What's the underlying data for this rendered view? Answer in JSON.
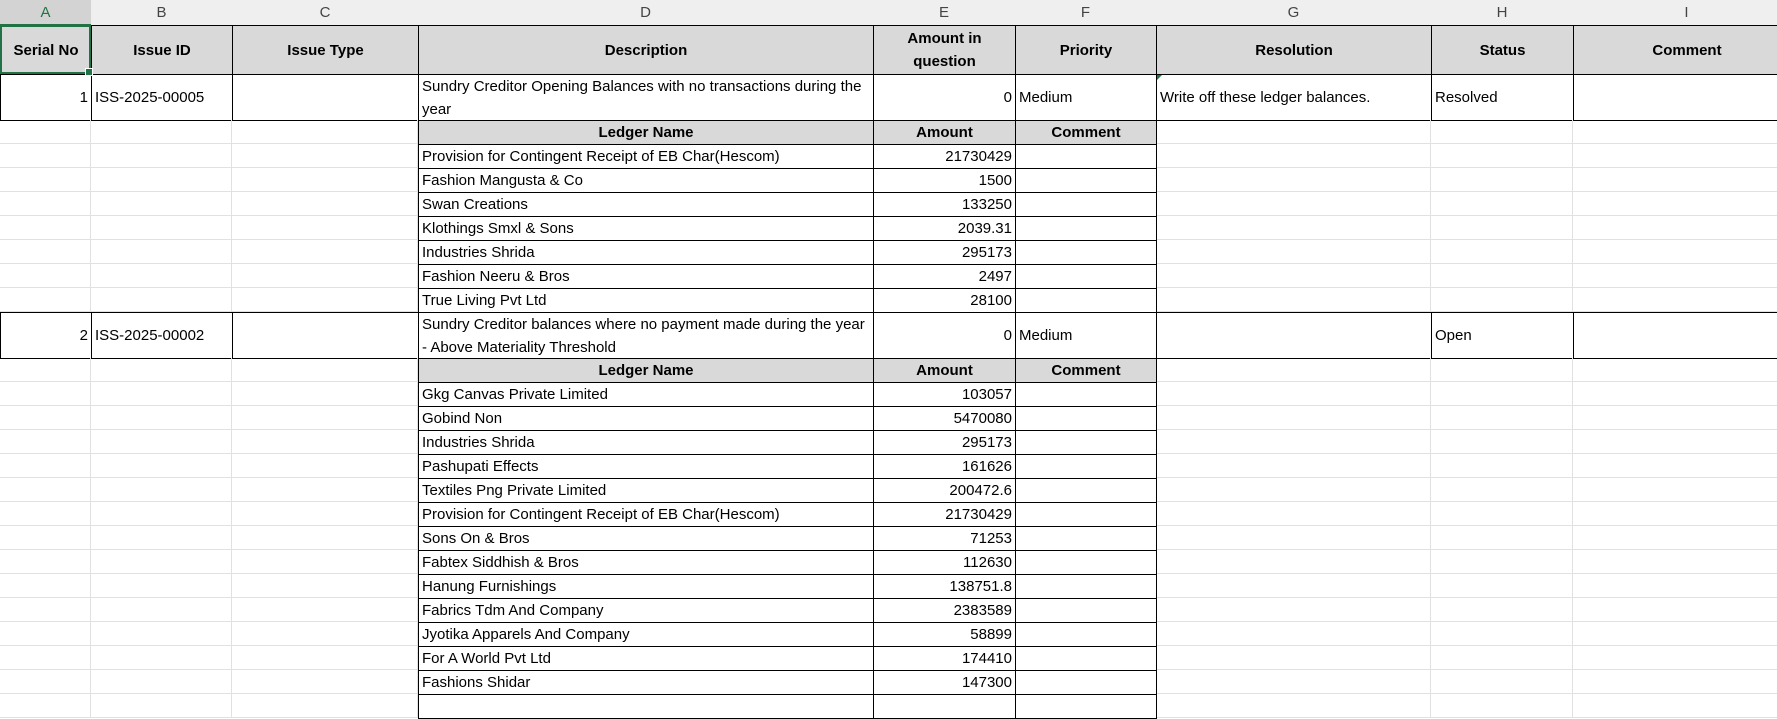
{
  "columns": [
    "A",
    "B",
    "C",
    "D",
    "E",
    "F",
    "G",
    "H",
    "I"
  ],
  "headers": [
    "Serial No",
    "Issue ID",
    "Issue Type",
    "Description",
    "Amount in question",
    "Priority",
    "Resolution",
    "Status",
    "Comment"
  ],
  "ledger_headers": [
    "Ledger Name",
    "Amount",
    "Comment"
  ],
  "issues": [
    {
      "serial": "1",
      "issue_id": "ISS-2025-00005",
      "issue_type": "",
      "description": "Sundry Creditor Opening Balances with no transactions during the year",
      "amount": "0",
      "priority": "Medium",
      "resolution": "Write off these ledger balances.",
      "status": "Resolved",
      "comment": "",
      "ledgers": [
        {
          "name": "Provision for Contingent Receipt of EB Char(Hescom)",
          "amount": "21730429",
          "comment": ""
        },
        {
          "name": "Fashion Mangusta & Co",
          "amount": "1500",
          "comment": ""
        },
        {
          "name": "Swan Creations",
          "amount": "133250",
          "comment": ""
        },
        {
          "name": "Klothings Smxl & Sons",
          "amount": "2039.31",
          "comment": ""
        },
        {
          "name": "Industries Shrida",
          "amount": "295173",
          "comment": ""
        },
        {
          "name": "Fashion Neeru & Bros",
          "amount": "2497",
          "comment": ""
        },
        {
          "name": "True Living Pvt Ltd",
          "amount": "28100",
          "comment": ""
        }
      ]
    },
    {
      "serial": "2",
      "issue_id": "ISS-2025-00002",
      "issue_type": "",
      "description": "Sundry Creditor balances where no payment made during the year - Above Materiality Threshold",
      "amount": "0",
      "priority": "Medium",
      "resolution": "",
      "status": "Open",
      "comment": "",
      "ledgers": [
        {
          "name": "Gkg Canvas Private Limited",
          "amount": "103057",
          "comment": ""
        },
        {
          "name": "Gobind Non",
          "amount": "5470080",
          "comment": ""
        },
        {
          "name": "Industries Shrida",
          "amount": "295173",
          "comment": ""
        },
        {
          "name": "Pashupati Effects",
          "amount": "161626",
          "comment": ""
        },
        {
          "name": "Textiles Png Private Limited",
          "amount": "200472.6",
          "comment": ""
        },
        {
          "name": "Provision for Contingent Receipt of EB Char(Hescom)",
          "amount": "21730429",
          "comment": ""
        },
        {
          "name": "Sons On & Bros",
          "amount": "71253",
          "comment": ""
        },
        {
          "name": "Fabtex Siddhish & Bros",
          "amount": "112630",
          "comment": ""
        },
        {
          "name": "Hanung Furnishings",
          "amount": "138751.8",
          "comment": ""
        },
        {
          "name": "Fabrics Tdm And Company",
          "amount": "2383589",
          "comment": ""
        },
        {
          "name": "Jyotika Apparels And Company",
          "amount": "58899",
          "comment": ""
        },
        {
          "name": "For A World Pvt Ltd",
          "amount": "174410",
          "comment": ""
        },
        {
          "name": "Fashions Shidar",
          "amount": "147300",
          "comment": ""
        },
        {
          "name": "",
          "amount": "",
          "comment": ""
        }
      ]
    }
  ],
  "colors": {
    "selection": "#217346",
    "header_fill": "#d9d9d9",
    "gridline": "#e1e1e1"
  }
}
